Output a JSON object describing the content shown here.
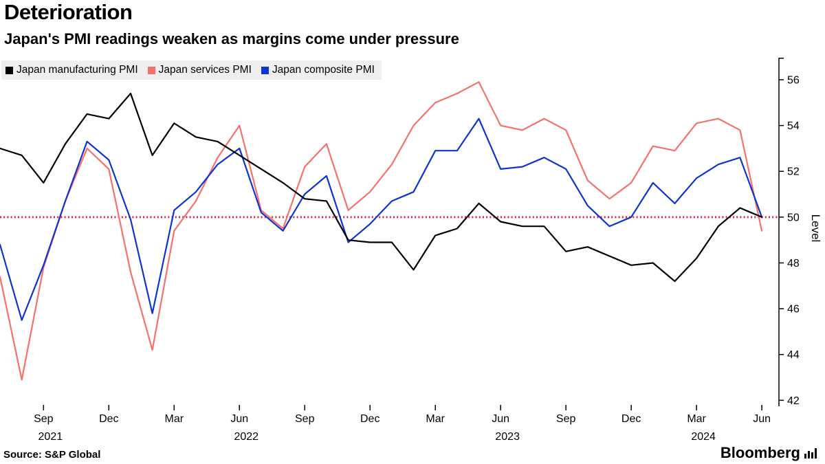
{
  "page": {
    "background": "#ffffff"
  },
  "brand": {
    "name": "Bloomberg"
  },
  "chart_data": {
    "type": "line",
    "title": "Deterioration",
    "subtitle": "Japan's PMI readings weaken as margins come under pressure",
    "source": "Source: S&P Global",
    "ylabel": "Level",
    "ylim": [
      41.8,
      56.9
    ],
    "yticks": [
      42,
      44,
      46,
      48,
      50,
      52,
      54,
      56
    ],
    "reference_line": 50,
    "reference_color": "#d92747",
    "grid": false,
    "legend_position": "top-left",
    "x": [
      "Jul 2021",
      "Aug 2021",
      "Sep 2021",
      "Oct 2021",
      "Nov 2021",
      "Dec 2021",
      "Jan 2022",
      "Feb 2022",
      "Mar 2022",
      "Apr 2022",
      "May 2022",
      "Jun 2022",
      "Jul 2022",
      "Aug 2022",
      "Sep 2022",
      "Oct 2022",
      "Nov 2022",
      "Dec 2022",
      "Jan 2023",
      "Feb 2023",
      "Mar 2023",
      "Apr 2023",
      "May 2023",
      "Jun 2023",
      "Jul 2023",
      "Aug 2023",
      "Sep 2023",
      "Oct 2023",
      "Nov 2023",
      "Dec 2023",
      "Jan 2024",
      "Feb 2024",
      "Mar 2024",
      "Apr 2024",
      "May 2024",
      "Jun 2024"
    ],
    "xticks": [
      {
        "index": 2,
        "label": "Sep",
        "year": "2021"
      },
      {
        "index": 5,
        "label": "Dec"
      },
      {
        "index": 8,
        "label": "Mar"
      },
      {
        "index": 11,
        "label": "Jun",
        "year": "2022"
      },
      {
        "index": 14,
        "label": "Sep"
      },
      {
        "index": 17,
        "label": "Dec"
      },
      {
        "index": 20,
        "label": "Mar"
      },
      {
        "index": 23,
        "label": "Jun",
        "year": "2023"
      },
      {
        "index": 26,
        "label": "Sep"
      },
      {
        "index": 29,
        "label": "Dec"
      },
      {
        "index": 32,
        "label": "Mar",
        "year": "2024"
      },
      {
        "index": 35,
        "label": "Jun"
      }
    ],
    "series": [
      {
        "name": "Japan manufacturing PMI",
        "color": "#000000",
        "values": [
          53.0,
          52.7,
          51.5,
          53.2,
          54.5,
          54.3,
          55.4,
          52.7,
          54.1,
          53.5,
          53.3,
          52.7,
          52.1,
          51.5,
          50.8,
          50.7,
          49.0,
          48.9,
          48.9,
          47.7,
          49.2,
          49.5,
          50.6,
          49.8,
          49.6,
          49.6,
          48.5,
          48.7,
          48.3,
          47.9,
          48.0,
          47.2,
          48.2,
          49.6,
          50.4,
          50.0
        ]
      },
      {
        "name": "Japan services PMI",
        "color": "#f5716c",
        "values": [
          47.4,
          42.9,
          47.8,
          50.7,
          53.0,
          52.1,
          47.6,
          44.2,
          49.4,
          50.7,
          52.6,
          54.0,
          50.3,
          49.5,
          52.2,
          53.2,
          50.3,
          51.1,
          52.3,
          54.0,
          55.0,
          55.4,
          55.9,
          54.0,
          53.8,
          54.3,
          53.8,
          51.6,
          50.8,
          51.5,
          53.1,
          52.9,
          54.1,
          54.3,
          53.8,
          49.4
        ]
      },
      {
        "name": "Japan composite PMI",
        "color": "#0e34d0",
        "values": [
          48.8,
          45.5,
          47.9,
          50.7,
          53.3,
          52.5,
          49.9,
          45.8,
          50.3,
          51.1,
          52.3,
          53.0,
          50.2,
          49.4,
          51.0,
          51.8,
          48.9,
          49.7,
          50.7,
          51.1,
          52.9,
          52.9,
          54.3,
          52.1,
          52.2,
          52.6,
          52.1,
          50.5,
          49.6,
          50.0,
          51.5,
          50.6,
          51.7,
          52.3,
          52.6,
          50.0
        ]
      }
    ]
  }
}
